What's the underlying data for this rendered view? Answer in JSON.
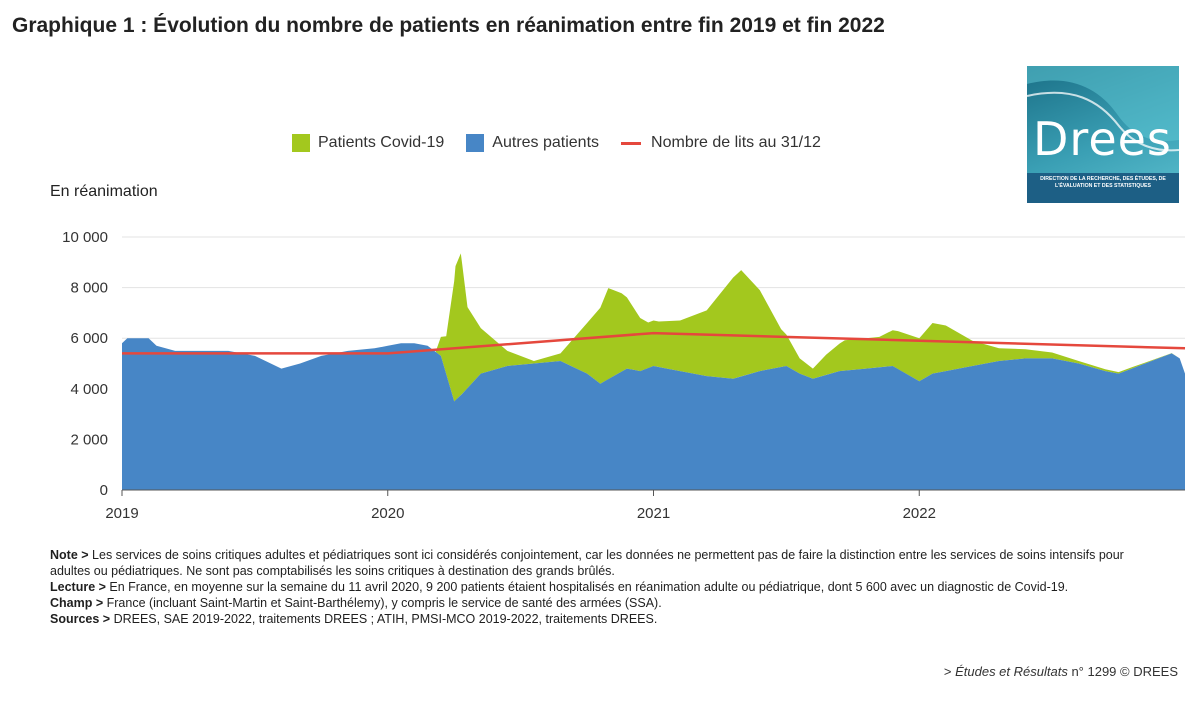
{
  "title": "Graphique 1 : Évolution du nombre de patients en réanimation entre fin 2019 et fin 2022",
  "logo": {
    "text": "Drees",
    "subtitle": "DIRECTION DE LA RECHERCHE, DES ÉTUDES, DE L'ÉVALUATION ET DES STATISTIQUES"
  },
  "colors": {
    "covid": "#a3c81e",
    "other": "#4786c6",
    "beds": "#e5483d"
  },
  "chart_data": {
    "type": "area",
    "ylabel": "En réanimation",
    "ylim": [
      0,
      10000
    ],
    "yticks": [
      0,
      2000,
      4000,
      6000,
      8000,
      10000
    ],
    "ytick_labels": [
      "0",
      "2 000",
      "4 000",
      "6 000",
      "8 000",
      "10 000"
    ],
    "xlim": [
      2019,
      2023
    ],
    "xticks": [
      2019,
      2020,
      2021,
      2022
    ],
    "xtick_labels": [
      "2019",
      "2020",
      "2021",
      "2022"
    ],
    "grid": "horizontal",
    "legend_position": "top",
    "series": [
      {
        "name": "Patients Covid-19",
        "kind": "area",
        "color": "#a3c81e",
        "points": [
          [
            2020.18,
            0
          ],
          [
            2020.22,
            1500
          ],
          [
            2020.255,
            5300
          ],
          [
            2020.275,
            5600
          ],
          [
            2020.3,
            3200
          ],
          [
            2020.35,
            1800
          ],
          [
            2020.45,
            600
          ],
          [
            2020.55,
            100
          ],
          [
            2020.65,
            300
          ],
          [
            2020.75,
            2000
          ],
          [
            2020.83,
            3600
          ],
          [
            2020.88,
            3100
          ],
          [
            2020.95,
            2100
          ],
          [
            2020.98,
            1800
          ],
          [
            2021.02,
            1800
          ],
          [
            2021.1,
            2000
          ],
          [
            2021.2,
            2600
          ],
          [
            2021.3,
            4000
          ],
          [
            2021.33,
            4200
          ],
          [
            2021.4,
            3200
          ],
          [
            2021.48,
            1500
          ],
          [
            2021.55,
            600
          ],
          [
            2021.6,
            400
          ],
          [
            2021.65,
            800
          ],
          [
            2021.72,
            1200
          ],
          [
            2021.85,
            1200
          ],
          [
            2021.92,
            1500
          ],
          [
            2022.0,
            1700
          ],
          [
            2022.05,
            2000
          ],
          [
            2022.1,
            1800
          ],
          [
            2022.2,
            1000
          ],
          [
            2022.3,
            500
          ],
          [
            2022.45,
            300
          ],
          [
            2022.6,
            100
          ],
          [
            2022.99,
            0
          ]
        ]
      },
      {
        "name": "Autres patients",
        "kind": "area",
        "color": "#4786c6",
        "points": [
          [
            2019.0,
            5800
          ],
          [
            2019.02,
            6000
          ],
          [
            2019.05,
            6000
          ],
          [
            2019.1,
            6000
          ],
          [
            2019.13,
            5700
          ],
          [
            2019.2,
            5500
          ],
          [
            2019.3,
            5500
          ],
          [
            2019.4,
            5500
          ],
          [
            2019.5,
            5300
          ],
          [
            2019.6,
            4800
          ],
          [
            2019.67,
            5000
          ],
          [
            2019.75,
            5300
          ],
          [
            2019.85,
            5500
          ],
          [
            2019.95,
            5600
          ],
          [
            2020.0,
            5700
          ],
          [
            2020.05,
            5800
          ],
          [
            2020.1,
            5800
          ],
          [
            2020.15,
            5700
          ],
          [
            2020.2,
            5300
          ],
          [
            2020.25,
            3500
          ],
          [
            2020.28,
            3800
          ],
          [
            2020.35,
            4600
          ],
          [
            2020.45,
            4900
          ],
          [
            2020.55,
            5000
          ],
          [
            2020.65,
            5100
          ],
          [
            2020.75,
            4600
          ],
          [
            2020.8,
            4200
          ],
          [
            2020.85,
            4500
          ],
          [
            2020.9,
            4800
          ],
          [
            2020.95,
            4700
          ],
          [
            2021.0,
            4900
          ],
          [
            2021.05,
            4800
          ],
          [
            2021.1,
            4700
          ],
          [
            2021.2,
            4500
          ],
          [
            2021.3,
            4400
          ],
          [
            2021.4,
            4700
          ],
          [
            2021.5,
            4900
          ],
          [
            2021.55,
            4600
          ],
          [
            2021.6,
            4400
          ],
          [
            2021.7,
            4700
          ],
          [
            2021.8,
            4800
          ],
          [
            2021.9,
            4900
          ],
          [
            2022.0,
            4300
          ],
          [
            2022.05,
            4600
          ],
          [
            2022.1,
            4700
          ],
          [
            2022.2,
            4900
          ],
          [
            2022.3,
            5100
          ],
          [
            2022.4,
            5200
          ],
          [
            2022.5,
            5200
          ],
          [
            2022.6,
            5000
          ],
          [
            2022.7,
            4700
          ],
          [
            2022.75,
            4600
          ],
          [
            2022.8,
            4800
          ],
          [
            2022.85,
            5000
          ],
          [
            2022.9,
            5200
          ],
          [
            2022.95,
            5400
          ],
          [
            2022.98,
            5200
          ],
          [
            2023.0,
            4600
          ]
        ]
      },
      {
        "name": "Nombre de lits au 31/12",
        "kind": "line",
        "color": "#e5483d",
        "points": [
          [
            2019.0,
            5400
          ],
          [
            2020.0,
            5400
          ],
          [
            2021.0,
            6200
          ],
          [
            2022.0,
            5900
          ],
          [
            2023.0,
            5600
          ]
        ]
      }
    ]
  },
  "notes": [
    {
      "label": "Note >",
      "text": " Les services de soins critiques adultes et pédiatriques sont ici considérés conjointement, car les données ne permettent pas de faire la distinction entre les services de soins intensifs pour adultes ou pédiatriques. Ne sont pas comptabilisés les soins critiques à destination des grands brûlés."
    },
    {
      "label": "Lecture >",
      "text": " En France, en moyenne sur la semaine du 11 avril 2020, 9 200 patients étaient hospitalisés en réanimation adulte ou pédiatrique, dont 5 600 avec un diagnostic de Covid-19."
    },
    {
      "label": "Champ >",
      "text": " France (incluant Saint-Martin et Saint-Barthélemy), y compris le service de santé des armées (SSA)."
    },
    {
      "label": "Sources >",
      "text": " DREES, SAE 2019-2022, traitements DREES ; ATIH, PMSI-MCO 2019-2022, traitements DREES."
    }
  ],
  "credit": {
    "prefix": "> ",
    "publication": "Études et Résultats",
    "number": " n° 1299 © DREES"
  }
}
